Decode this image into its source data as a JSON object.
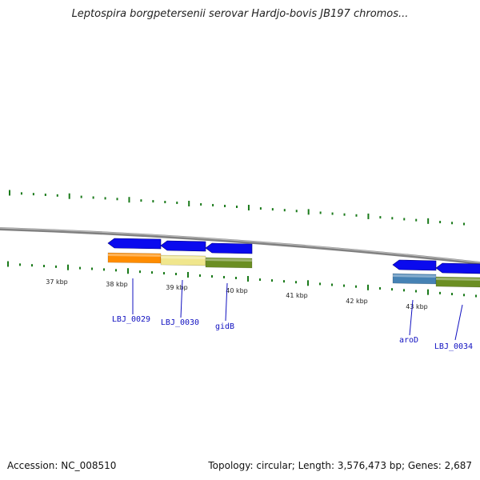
{
  "title": "Leptospira borgpetersenii serovar Hardjo-bovis JB197 chromos...",
  "footer": {
    "accession": "Accession: NC_008510",
    "summary": "Topology: circular; Length: 3,576,473 bp; Genes: 2,687"
  },
  "colors": {
    "backbone": "#808080",
    "ticks": "#1a7a1a",
    "arrow": "#0a0aee",
    "label": "#1010c0"
  },
  "kbp_labels": [
    "37 kbp",
    "38 kbp",
    "39 kbp",
    "40 kbp",
    "41 kbp",
    "42 kbp",
    "43 kbp"
  ],
  "genes": [
    {
      "name": "LBJ_0029",
      "color": "#ff8c00",
      "strand": "reverse"
    },
    {
      "name": "LBJ_0030",
      "color": "#f0e68c",
      "strand": "reverse"
    },
    {
      "name": "gidB",
      "color": "#6b8e23",
      "strand": "reverse"
    },
    {
      "name": "aroD",
      "color": "#4682b4",
      "strand": "reverse"
    },
    {
      "name": "LBJ_0034",
      "color": "#6b8e23",
      "strand": "reverse"
    }
  ]
}
